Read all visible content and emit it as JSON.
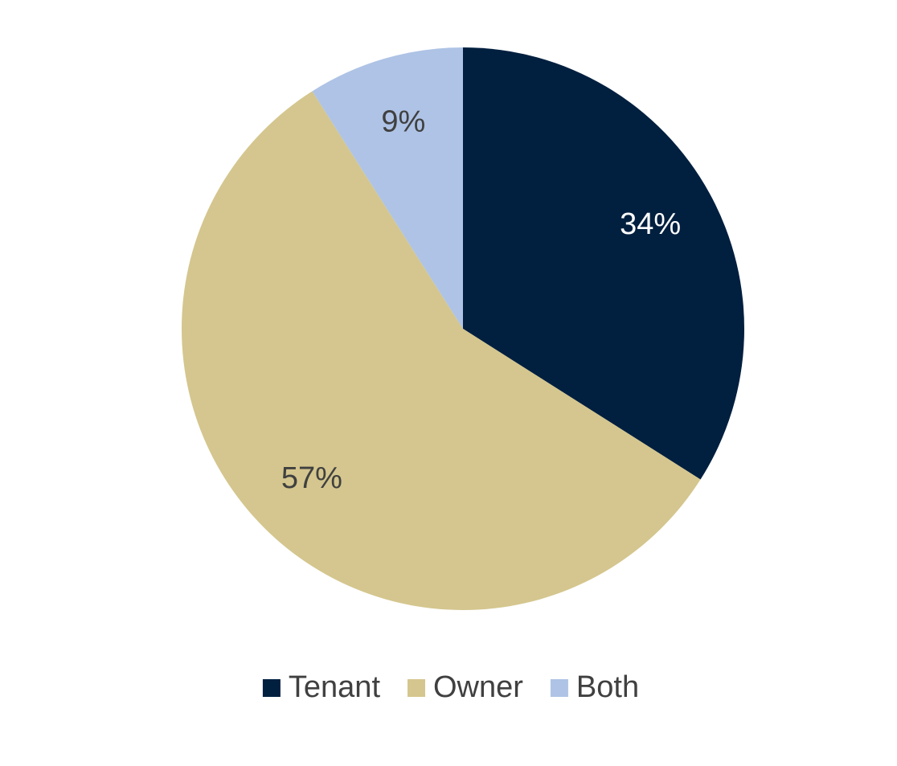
{
  "chart_data": {
    "type": "pie",
    "categories": [
      "Tenant",
      "Owner",
      "Both"
    ],
    "values": [
      34,
      57,
      9
    ],
    "value_labels": [
      "34%",
      "57%",
      "9%"
    ],
    "colors": [
      "#011f3f",
      "#d4c68e",
      "#aec3e5"
    ],
    "legend": "bottom"
  }
}
